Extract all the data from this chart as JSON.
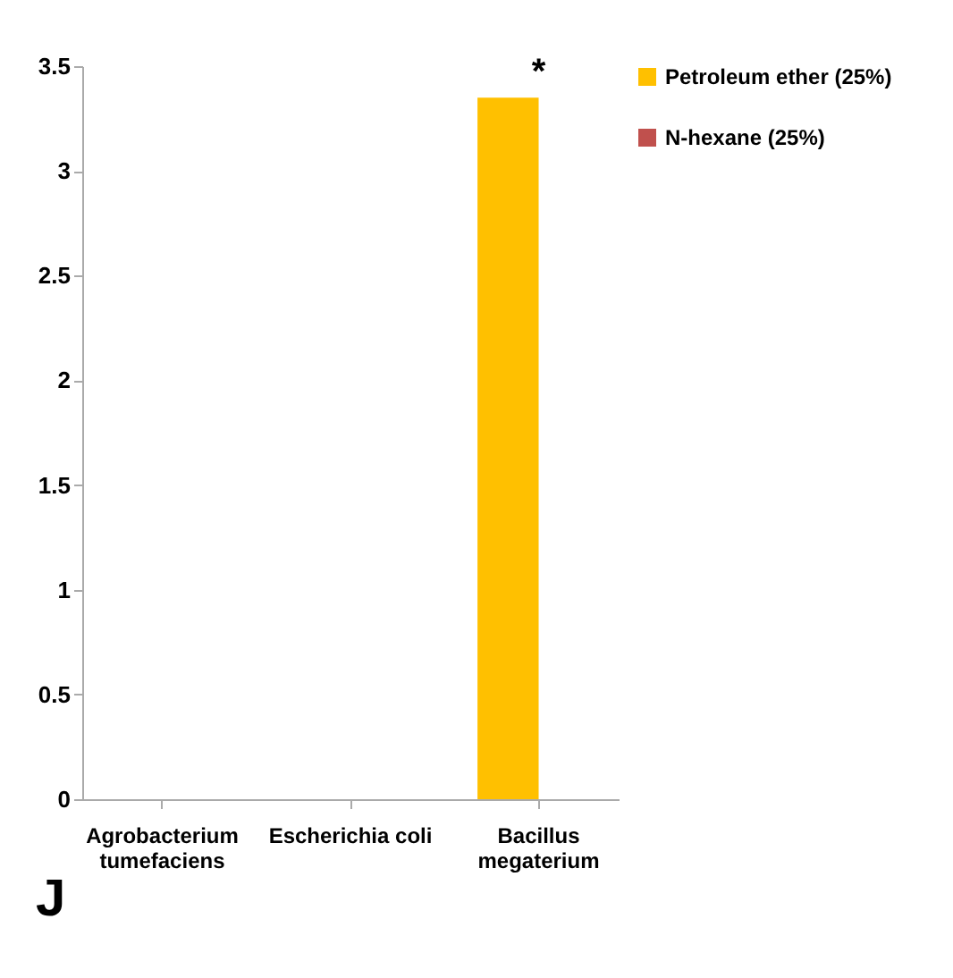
{
  "chart_data": {
    "type": "bar",
    "categories": [
      "Agrobacterium tumefaciens",
      "Escherichia coli",
      "Bacillus megaterium"
    ],
    "series": [
      {
        "name": "Petroleum ether (25%)",
        "color": "#ffc000",
        "values": [
          0,
          0,
          3.35
        ]
      },
      {
        "name": "N-hexane (25%)",
        "color": "#c0504d",
        "values": [
          0,
          0,
          0
        ]
      }
    ],
    "ylim": [
      0,
      3.5
    ],
    "yticks": [
      0,
      0.5,
      1,
      1.5,
      2,
      2.5,
      3,
      3.5
    ],
    "grid": false,
    "legend": "right",
    "annotations": [
      {
        "text": "*",
        "x": "Bacillus megaterium",
        "y": 3.35
      },
      "J"
    ]
  }
}
